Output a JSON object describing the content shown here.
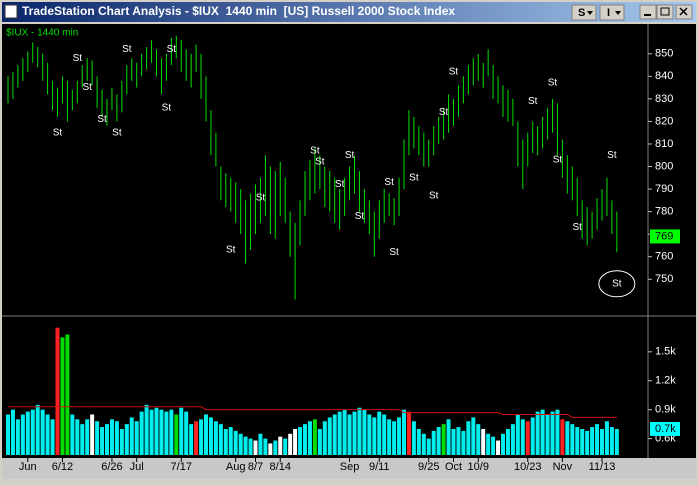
{
  "window": {
    "title": "TradeStation Chart Analysis - $IUX  1440 min  [US] Russell 2000 Stock Index",
    "buttons": [
      "S",
      "I"
    ]
  },
  "chart_data": [
    {
      "type": "ohlc",
      "ylim": [
        734.6,
        863.2
      ],
      "yticks": [
        750,
        760,
        770,
        780,
        790,
        800,
        810,
        820,
        830,
        840,
        850
      ],
      "series": [
        {
          "name": "$IUX - 1440 min",
          "color": "#00e000",
          "high": [
            840,
            842,
            845,
            848,
            851,
            855,
            853,
            850,
            846,
            838,
            835,
            840,
            838,
            834,
            838,
            845,
            848,
            847,
            840,
            834,
            830,
            835,
            832,
            838,
            845,
            848,
            846,
            850,
            853,
            856,
            852,
            848,
            850,
            857,
            858,
            856,
            852,
            850,
            854,
            850,
            840,
            825,
            815,
            800,
            797,
            795,
            793,
            790,
            785,
            788,
            792,
            795,
            805,
            800,
            798,
            802,
            795,
            780,
            775,
            785,
            798,
            803,
            808,
            805,
            800,
            798,
            795,
            790,
            795,
            800,
            805,
            798,
            790,
            785,
            780,
            785,
            790,
            788,
            786,
            795,
            812,
            825,
            822,
            818,
            815,
            812,
            818,
            822,
            826,
            832,
            830,
            836,
            840,
            845,
            848,
            850,
            846,
            852,
            845,
            840,
            836,
            834,
            830,
            820,
            812,
            815,
            820,
            818,
            822,
            826,
            830,
            828,
            812,
            805,
            800,
            795,
            785,
            782,
            780,
            786,
            790,
            795,
            785,
            780
          ],
          "low": [
            828,
            830,
            835,
            838,
            842,
            846,
            844,
            838,
            832,
            825,
            822,
            828,
            820,
            825,
            828,
            835,
            838,
            836,
            826,
            822,
            818,
            825,
            820,
            824,
            832,
            838,
            835,
            840,
            843,
            846,
            840,
            832,
            838,
            845,
            848,
            842,
            838,
            835,
            842,
            830,
            820,
            805,
            800,
            785,
            782,
            780,
            775,
            770,
            757,
            763,
            770,
            775,
            778,
            770,
            768,
            778,
            775,
            760,
            741,
            765,
            778,
            785,
            788,
            790,
            782,
            780,
            775,
            772,
            778,
            785,
            788,
            780,
            775,
            770,
            760,
            768,
            775,
            778,
            774,
            778,
            790,
            805,
            808,
            805,
            800,
            800,
            805,
            810,
            812,
            815,
            818,
            822,
            828,
            832,
            836,
            838,
            835,
            840,
            830,
            828,
            822,
            820,
            818,
            800,
            790,
            800,
            806,
            805,
            808,
            812,
            815,
            805,
            795,
            788,
            785,
            778,
            768,
            765,
            768,
            772,
            776,
            778,
            770,
            762
          ]
        }
      ],
      "last_value": 769,
      "last_color": "#00ff00",
      "annotation_color": "#ffffff",
      "annotations": [
        {
          "label": "St",
          "bar": 10,
          "value": 815
        },
        {
          "label": "St",
          "bar": 14,
          "value": 848
        },
        {
          "label": "St",
          "bar": 16,
          "value": 835
        },
        {
          "label": "St",
          "bar": 19,
          "value": 821
        },
        {
          "label": "St",
          "bar": 22,
          "value": 815
        },
        {
          "label": "St",
          "bar": 24,
          "value": 852
        },
        {
          "label": "St",
          "bar": 32,
          "value": 826
        },
        {
          "label": "St",
          "bar": 33,
          "value": 852
        },
        {
          "label": "St",
          "bar": 45,
          "value": 763
        },
        {
          "label": "St",
          "bar": 51,
          "value": 786
        },
        {
          "label": "St",
          "bar": 62,
          "value": 807
        },
        {
          "label": "St",
          "bar": 63,
          "value": 802
        },
        {
          "label": "St",
          "bar": 69,
          "value": 805
        },
        {
          "label": "St",
          "bar": 67,
          "value": 792
        },
        {
          "label": "St",
          "bar": 71,
          "value": 778
        },
        {
          "label": "St",
          "bar": 77,
          "value": 793
        },
        {
          "label": "St",
          "bar": 78,
          "value": 762
        },
        {
          "label": "St",
          "bar": 82,
          "value": 795
        },
        {
          "label": "St",
          "bar": 86,
          "value": 787
        },
        {
          "label": "St",
          "bar": 88,
          "value": 824
        },
        {
          "label": "St",
          "bar": 90,
          "value": 842
        },
        {
          "label": "St",
          "bar": 106,
          "value": 829
        },
        {
          "label": "St",
          "bar": 110,
          "value": 837
        },
        {
          "label": "St",
          "bar": 111,
          "value": 803
        },
        {
          "label": "St",
          "bar": 115,
          "value": 773
        },
        {
          "label": "St",
          "bar": 122,
          "value": 805
        },
        {
          "label": "St",
          "bar": 123,
          "value": 748,
          "circle": true
        }
      ]
    },
    {
      "type": "bar",
      "ylim": [
        0.43,
        1.83
      ],
      "yticks": [
        {
          "value": 0.6,
          "label": "0.6k"
        },
        {
          "value": 0.9,
          "label": "0.9k"
        },
        {
          "value": 1.2,
          "label": "1.2k"
        },
        {
          "value": 1.5,
          "label": "1.5k"
        }
      ],
      "categories": [
        null,
        null,
        null,
        null,
        "Jun",
        null,
        null,
        null,
        null,
        null,
        null,
        "6/12",
        null,
        null,
        null,
        null,
        null,
        null,
        null,
        null,
        null,
        "6/26",
        null,
        null,
        null,
        null,
        "Jul",
        null,
        null,
        null,
        null,
        null,
        null,
        null,
        null,
        "7/17",
        null,
        null,
        null,
        null,
        null,
        null,
        null,
        null,
        null,
        null,
        "Aug",
        null,
        null,
        null,
        "8/7",
        null,
        null,
        null,
        null,
        "8/14",
        null,
        null,
        null,
        null,
        null,
        null,
        null,
        null,
        null,
        null,
        null,
        null,
        null,
        "Sep",
        null,
        null,
        null,
        null,
        null,
        "9/11",
        null,
        null,
        null,
        null,
        null,
        null,
        null,
        null,
        null,
        "9/25",
        null,
        null,
        null,
        null,
        "Oct",
        null,
        null,
        null,
        null,
        "10/9",
        null,
        null,
        null,
        null,
        null,
        null,
        null,
        null,
        null,
        "10/23",
        null,
        null,
        null,
        null,
        null,
        null,
        "Nov",
        null,
        null,
        null,
        null,
        null,
        null,
        null,
        "11/13",
        null,
        null,
        null
      ],
      "values": [
        0.85,
        0.9,
        0.8,
        0.85,
        0.88,
        0.9,
        0.95,
        0.9,
        0.85,
        0.8,
        1.75,
        1.65,
        1.68,
        0.85,
        0.8,
        0.75,
        0.8,
        0.85,
        0.78,
        0.72,
        0.75,
        0.8,
        0.78,
        0.7,
        0.75,
        0.82,
        0.78,
        0.88,
        0.95,
        0.9,
        0.92,
        0.9,
        0.88,
        0.9,
        0.85,
        0.92,
        0.88,
        0.75,
        0.78,
        0.8,
        0.85,
        0.82,
        0.78,
        0.75,
        0.7,
        0.72,
        0.68,
        0.65,
        0.62,
        0.6,
        0.58,
        0.65,
        0.6,
        0.55,
        0.58,
        0.62,
        0.6,
        0.65,
        0.7,
        0.72,
        0.75,
        0.78,
        0.8,
        0.7,
        0.78,
        0.82,
        0.85,
        0.88,
        0.9,
        0.85,
        0.88,
        0.92,
        0.9,
        0.85,
        0.82,
        0.88,
        0.85,
        0.8,
        0.78,
        0.82,
        0.9,
        0.88,
        0.78,
        0.7,
        0.65,
        0.6,
        0.68,
        0.72,
        0.75,
        0.8,
        0.7,
        0.72,
        0.68,
        0.78,
        0.82,
        0.75,
        0.7,
        0.65,
        0.62,
        0.58,
        0.65,
        0.7,
        0.75,
        0.85,
        0.8,
        0.78,
        0.82,
        0.88,
        0.9,
        0.85,
        0.88,
        0.9,
        0.8,
        0.78,
        0.75,
        0.72,
        0.7,
        0.68,
        0.72,
        0.75,
        0.7,
        0.78,
        0.72,
        0.7
      ],
      "colors": [
        "#0ee",
        "#0ee",
        "#0ee",
        "#0ee",
        "#0ee",
        "#0ee",
        "#0ee",
        "#0ee",
        "#0ee",
        "#0ee",
        "#f22",
        "#0d0",
        "#0d0",
        "#0ee",
        "#0ee",
        "#0ee",
        "#0ee",
        "#fff",
        "#0ee",
        "#0ee",
        "#0ee",
        "#0ee",
        "#0ee",
        "#0ee",
        "#0ee",
        "#0ee",
        "#0ee",
        "#0ee",
        "#0ee",
        "#0ee",
        "#0ee",
        "#0ee",
        "#0ee",
        "#0ee",
        "#0d0",
        "#0ee",
        "#0ee",
        "#0ee",
        "#f22",
        "#0ee",
        "#0ee",
        "#0ee",
        "#0ee",
        "#0ee",
        "#0ee",
        "#0ee",
        "#0ee",
        "#0ee",
        "#0ee",
        "#0ee",
        "#fff",
        "#0ee",
        "#0ee",
        "#fff",
        "#0ee",
        "#fff",
        "#0ee",
        "#fff",
        "#fff",
        "#0ee",
        "#0ee",
        "#0ee",
        "#0d0",
        "#0ee",
        "#0ee",
        "#0ee",
        "#0ee",
        "#0ee",
        "#0ee",
        "#0ee",
        "#0ee",
        "#0ee",
        "#0ee",
        "#0ee",
        "#0ee",
        "#0ee",
        "#0ee",
        "#0ee",
        "#0ee",
        "#0ee",
        "#0ee",
        "#f22",
        "#0ee",
        "#0ee",
        "#0ee",
        "#0ee",
        "#0ee",
        "#0ee",
        "#0d0",
        "#0ee",
        "#0ee",
        "#0ee",
        "#0ee",
        "#0ee",
        "#0ee",
        "#0ee",
        "#fff",
        "#0ee",
        "#0ee",
        "#fff",
        "#0ee",
        "#0ee",
        "#0ee",
        "#0ee",
        "#0ee",
        "#f22",
        "#0ee",
        "#0ee",
        "#0ee",
        "#0ee",
        "#0ee",
        "#0ee",
        "#f22",
        "#0ee",
        "#0ee",
        "#0ee",
        "#0ee",
        "#0ee",
        "#0ee",
        "#0ee",
        "#0ee",
        "#0ee",
        "#0ee",
        "#0ee"
      ],
      "average": {
        "color": "#d01010",
        "values": [
          0.93,
          0.93,
          0.93,
          0.93,
          0.93,
          0.93,
          0.93,
          0.93,
          0.93,
          0.93,
          0.93,
          0.93,
          0.93,
          0.93,
          0.93,
          0.93,
          0.93,
          0.93,
          0.93,
          0.93,
          0.93,
          0.93,
          0.93,
          0.93,
          0.93,
          0.93,
          0.93,
          0.93,
          0.93,
          0.93,
          0.93,
          0.93,
          0.93,
          0.93,
          0.93,
          0.93,
          0.93,
          0.93,
          0.93,
          0.93,
          0.9,
          0.9,
          0.9,
          0.9,
          0.9,
          0.9,
          0.9,
          0.9,
          0.9,
          0.9,
          0.9,
          0.9,
          0.9,
          0.9,
          0.9,
          0.9,
          0.9,
          0.9,
          0.9,
          0.9,
          0.9,
          0.9,
          0.9,
          0.9,
          0.9,
          0.9,
          0.9,
          0.9,
          0.9,
          0.9,
          0.9,
          0.9,
          0.9,
          0.9,
          0.9,
          0.9,
          0.9,
          0.9,
          0.9,
          0.9,
          0.87,
          0.87,
          0.87,
          0.87,
          0.87,
          0.87,
          0.87,
          0.87,
          0.87,
          0.87,
          0.87,
          0.87,
          0.87,
          0.87,
          0.87,
          0.87,
          0.87,
          0.87,
          0.87,
          0.87,
          0.85,
          0.85,
          0.85,
          0.85,
          0.85,
          0.85,
          0.85,
          0.85,
          0.85,
          0.85,
          0.85,
          0.85,
          0.85,
          0.85,
          0.82,
          0.82,
          0.82,
          0.82,
          0.82,
          0.82,
          0.82,
          0.82,
          0.82,
          0.82
        ]
      },
      "last_value": {
        "value": 0.7,
        "label": "0.7k"
      },
      "last_color": "#00ffff"
    }
  ]
}
